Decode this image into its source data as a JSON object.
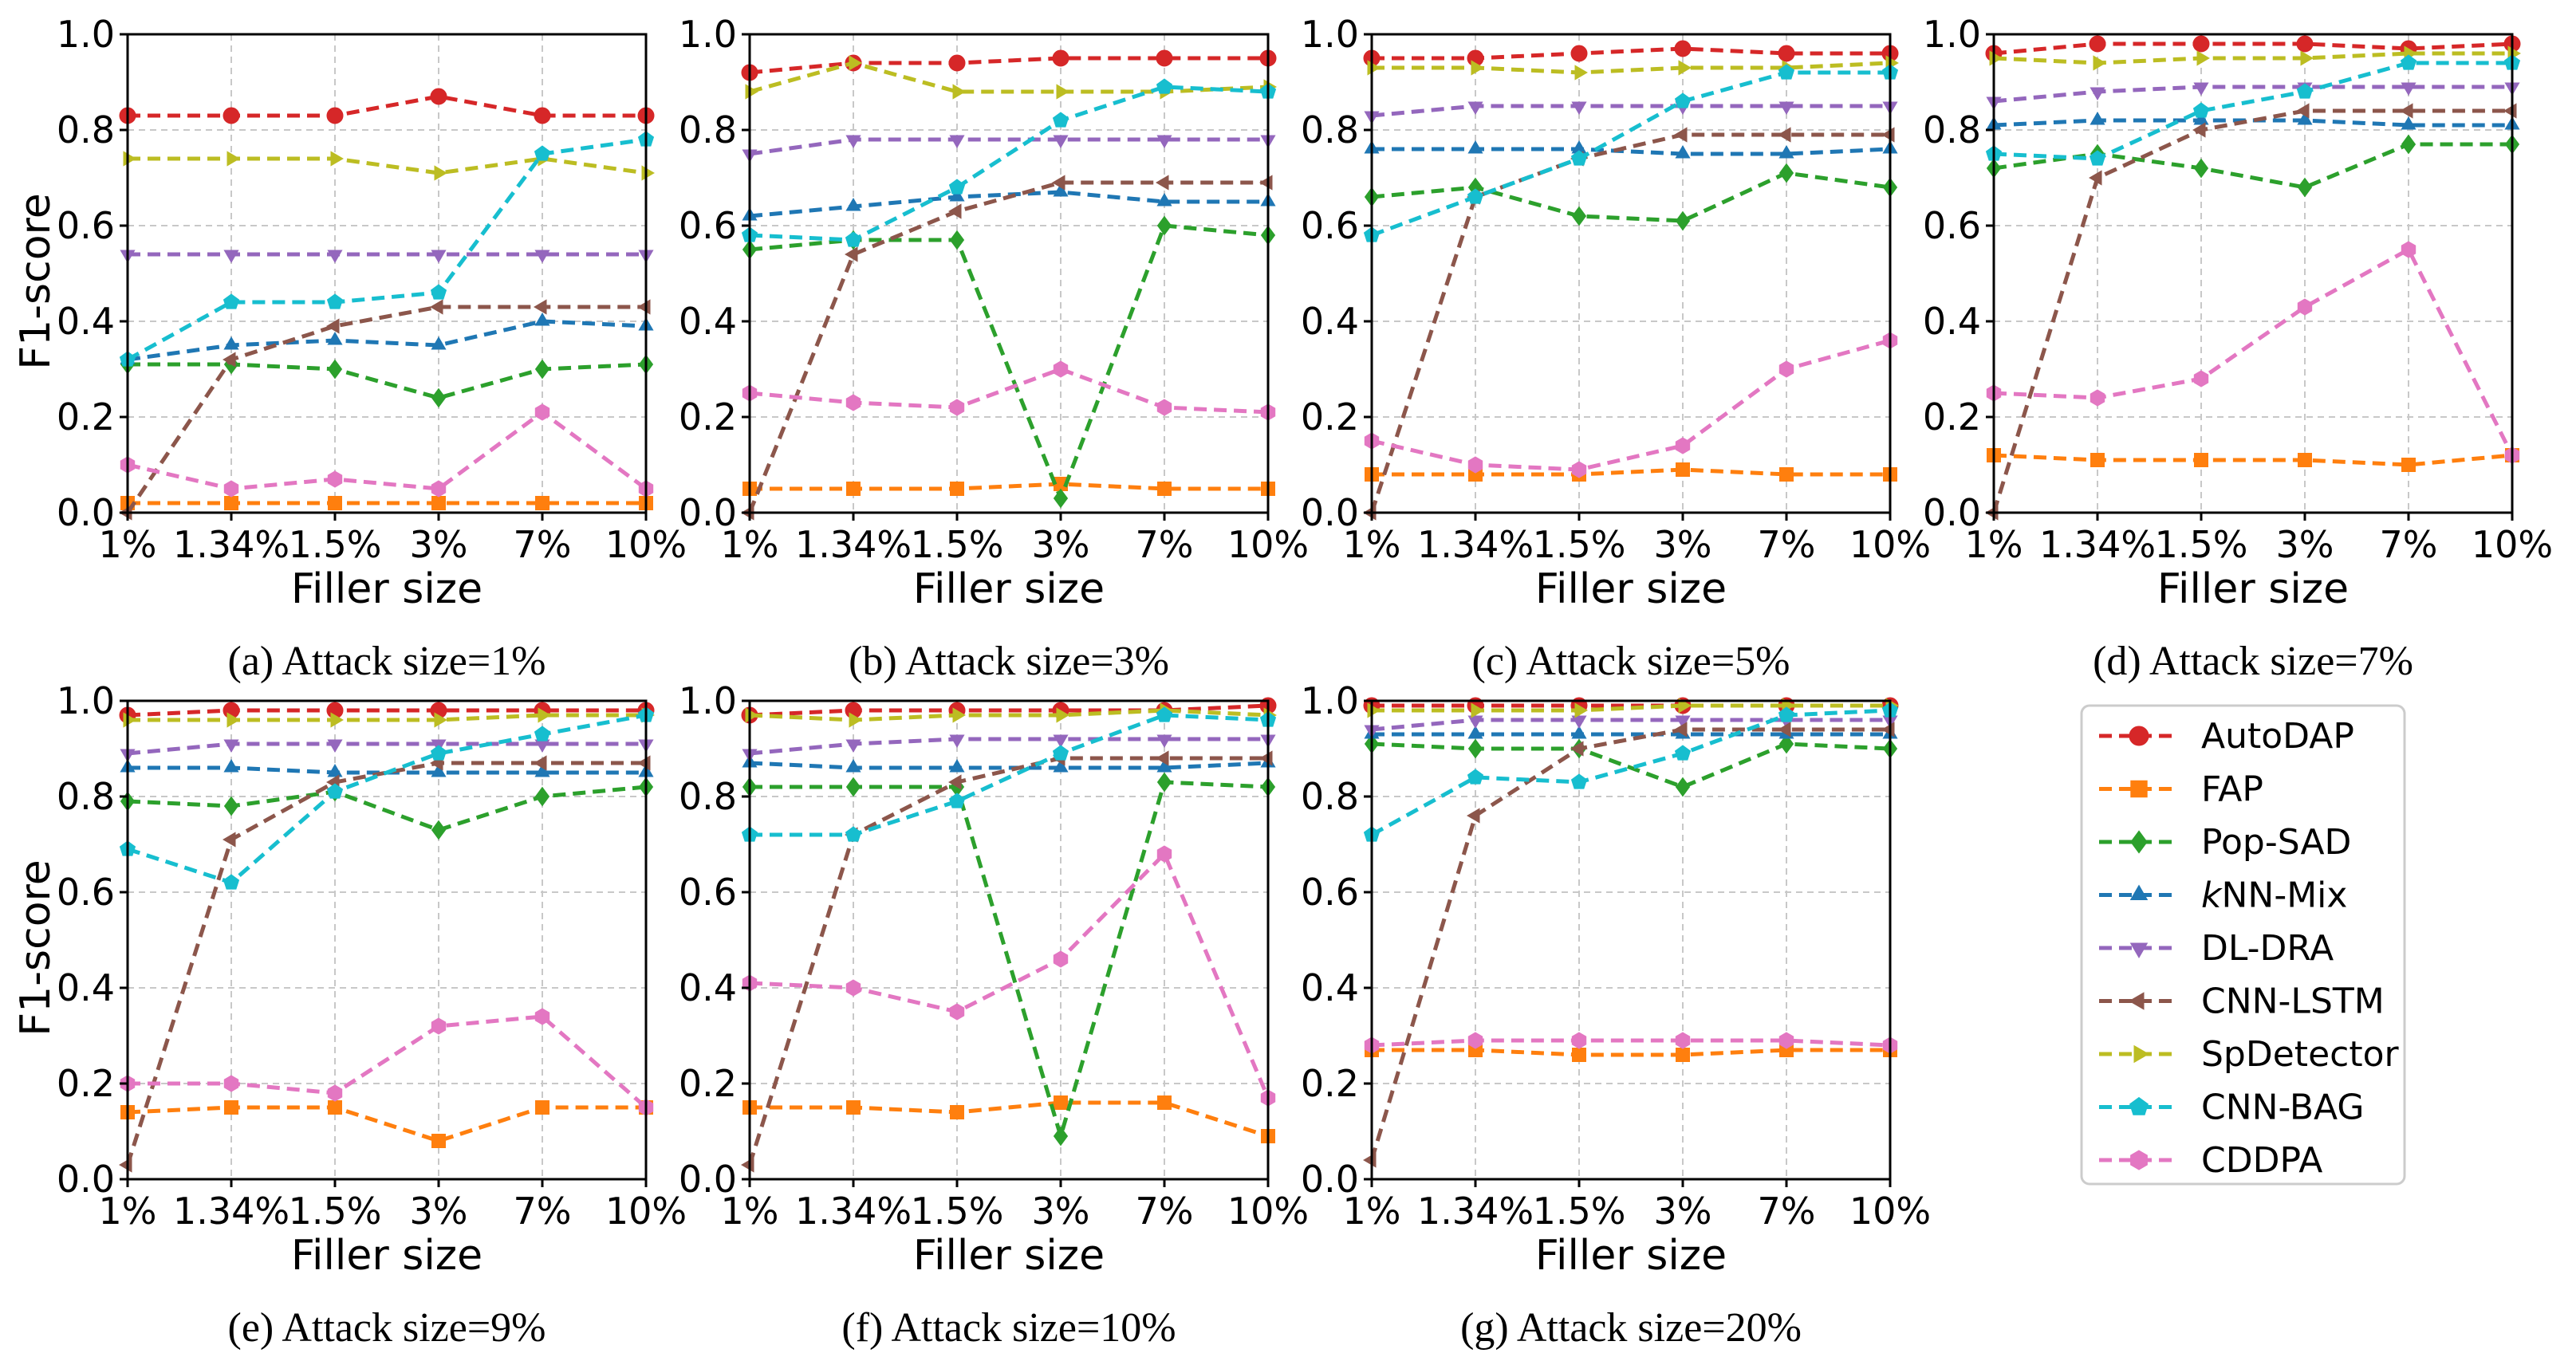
{
  "figure": {
    "x_axis_label": "Filler size",
    "y_axis_label": "F1-score",
    "legend": [
      {
        "name": "AutoDAP",
        "color": "#d62728",
        "marker": "circle"
      },
      {
        "name": "FAP",
        "color": "#ff7f0e",
        "marker": "square"
      },
      {
        "name": "Pop-SAD",
        "color": "#2ca02c",
        "marker": "diamond"
      },
      {
        "name": "kNN-Mix",
        "color": "#1f77b4",
        "marker": "triangle-up"
      },
      {
        "name": "DL-DRA",
        "color": "#9467bd",
        "marker": "triangle-down"
      },
      {
        "name": "CNN-LSTM",
        "color": "#8c564b",
        "marker": "triangle-left"
      },
      {
        "name": "SpDetector",
        "color": "#bcbd22",
        "marker": "triangle-right"
      },
      {
        "name": "CNN-BAG",
        "color": "#17becf",
        "marker": "pentagon"
      },
      {
        "name": "CDDPA",
        "color": "#e377c2",
        "marker": "hexagon"
      }
    ]
  },
  "chart_data": [
    {
      "type": "line",
      "caption": "(a) Attack size=1%",
      "categories": [
        "1%",
        "1.34%",
        "1.5%",
        "3%",
        "7%",
        "10%"
      ],
      "ylim": [
        0,
        1.0
      ],
      "yticks": [
        "0.0",
        "0.2",
        "0.4",
        "0.6",
        "0.8",
        "1.0"
      ],
      "grid": true,
      "series": [
        {
          "name": "AutoDAP",
          "values": [
            0.83,
            0.83,
            0.83,
            0.87,
            0.83,
            0.83
          ]
        },
        {
          "name": "FAP",
          "values": [
            0.02,
            0.02,
            0.02,
            0.02,
            0.02,
            0.02
          ]
        },
        {
          "name": "Pop-SAD",
          "values": [
            0.31,
            0.31,
            0.3,
            0.24,
            0.3,
            0.31
          ]
        },
        {
          "name": "kNN-Mix",
          "values": [
            0.32,
            0.35,
            0.36,
            0.35,
            0.4,
            0.39
          ]
        },
        {
          "name": "DL-DRA",
          "values": [
            0.54,
            0.54,
            0.54,
            0.54,
            0.54,
            0.54
          ]
        },
        {
          "name": "CNN-LSTM",
          "values": [
            0.0,
            0.32,
            0.39,
            0.43,
            0.43,
            0.43
          ]
        },
        {
          "name": "SpDetector",
          "values": [
            0.74,
            0.74,
            0.74,
            0.71,
            0.74,
            0.71
          ]
        },
        {
          "name": "CNN-BAG",
          "values": [
            0.32,
            0.44,
            0.44,
            0.46,
            0.75,
            0.78
          ]
        },
        {
          "name": "CDDPA",
          "values": [
            0.1,
            0.05,
            0.07,
            0.05,
            0.21,
            0.05
          ]
        }
      ]
    },
    {
      "type": "line",
      "caption": "(b) Attack size=3%",
      "categories": [
        "1%",
        "1.34%",
        "1.5%",
        "3%",
        "7%",
        "10%"
      ],
      "ylim": [
        0,
        1.0
      ],
      "yticks": [
        "0.0",
        "0.2",
        "0.4",
        "0.6",
        "0.8",
        "1.0"
      ],
      "grid": true,
      "series": [
        {
          "name": "AutoDAP",
          "values": [
            0.92,
            0.94,
            0.94,
            0.95,
            0.95,
            0.95
          ]
        },
        {
          "name": "FAP",
          "values": [
            0.05,
            0.05,
            0.05,
            0.06,
            0.05,
            0.05
          ]
        },
        {
          "name": "Pop-SAD",
          "values": [
            0.55,
            0.57,
            0.57,
            0.03,
            0.6,
            0.58
          ]
        },
        {
          "name": "kNN-Mix",
          "values": [
            0.62,
            0.64,
            0.66,
            0.67,
            0.65,
            0.65
          ]
        },
        {
          "name": "DL-DRA",
          "values": [
            0.75,
            0.78,
            0.78,
            0.78,
            0.78,
            0.78
          ]
        },
        {
          "name": "CNN-LSTM",
          "values": [
            0.0,
            0.54,
            0.63,
            0.69,
            0.69,
            0.69
          ]
        },
        {
          "name": "SpDetector",
          "values": [
            0.88,
            0.94,
            0.88,
            0.88,
            0.88,
            0.89
          ]
        },
        {
          "name": "CNN-BAG",
          "values": [
            0.58,
            0.57,
            0.68,
            0.82,
            0.89,
            0.88
          ]
        },
        {
          "name": "CDDPA",
          "values": [
            0.25,
            0.23,
            0.22,
            0.3,
            0.22,
            0.21
          ]
        }
      ]
    },
    {
      "type": "line",
      "caption": "(c) Attack size=5%",
      "categories": [
        "1%",
        "1.34%",
        "1.5%",
        "3%",
        "7%",
        "10%"
      ],
      "ylim": [
        0,
        1.0
      ],
      "yticks": [
        "0.0",
        "0.2",
        "0.4",
        "0.6",
        "0.8",
        "1.0"
      ],
      "grid": true,
      "series": [
        {
          "name": "AutoDAP",
          "values": [
            0.95,
            0.95,
            0.96,
            0.97,
            0.96,
            0.96
          ]
        },
        {
          "name": "FAP",
          "values": [
            0.08,
            0.08,
            0.08,
            0.09,
            0.08,
            0.08
          ]
        },
        {
          "name": "Pop-SAD",
          "values": [
            0.66,
            0.68,
            0.62,
            0.61,
            0.71,
            0.68
          ]
        },
        {
          "name": "kNN-Mix",
          "values": [
            0.76,
            0.76,
            0.76,
            0.75,
            0.75,
            0.76
          ]
        },
        {
          "name": "DL-DRA",
          "values": [
            0.83,
            0.85,
            0.85,
            0.85,
            0.85,
            0.85
          ]
        },
        {
          "name": "CNN-LSTM",
          "values": [
            0.0,
            0.66,
            0.74,
            0.79,
            0.79,
            0.79
          ]
        },
        {
          "name": "SpDetector",
          "values": [
            0.93,
            0.93,
            0.92,
            0.93,
            0.93,
            0.94
          ]
        },
        {
          "name": "CNN-BAG",
          "values": [
            0.58,
            0.66,
            0.74,
            0.86,
            0.92,
            0.92
          ]
        },
        {
          "name": "CDDPA",
          "values": [
            0.15,
            0.1,
            0.09,
            0.14,
            0.3,
            0.36
          ]
        }
      ]
    },
    {
      "type": "line",
      "caption": "(d) Attack size=7%",
      "categories": [
        "1%",
        "1.34%",
        "1.5%",
        "3%",
        "7%",
        "10%"
      ],
      "ylim": [
        0,
        1.0
      ],
      "yticks": [
        "0.0",
        "0.2",
        "0.4",
        "0.6",
        "0.8",
        "1.0"
      ],
      "grid": true,
      "series": [
        {
          "name": "AutoDAP",
          "values": [
            0.96,
            0.98,
            0.98,
            0.98,
            0.97,
            0.98
          ]
        },
        {
          "name": "FAP",
          "values": [
            0.12,
            0.11,
            0.11,
            0.11,
            0.1,
            0.12
          ]
        },
        {
          "name": "Pop-SAD",
          "values": [
            0.72,
            0.75,
            0.72,
            0.68,
            0.77,
            0.77
          ]
        },
        {
          "name": "kNN-Mix",
          "values": [
            0.81,
            0.82,
            0.82,
            0.82,
            0.81,
            0.81
          ]
        },
        {
          "name": "DL-DRA",
          "values": [
            0.86,
            0.88,
            0.89,
            0.89,
            0.89,
            0.89
          ]
        },
        {
          "name": "CNN-LSTM",
          "values": [
            0.0,
            0.7,
            0.8,
            0.84,
            0.84,
            0.84
          ]
        },
        {
          "name": "SpDetector",
          "values": [
            0.95,
            0.94,
            0.95,
            0.95,
            0.96,
            0.96
          ]
        },
        {
          "name": "CNN-BAG",
          "values": [
            0.75,
            0.74,
            0.84,
            0.88,
            0.94,
            0.94
          ]
        },
        {
          "name": "CDDPA",
          "values": [
            0.25,
            0.24,
            0.28,
            0.43,
            0.55,
            0.12
          ]
        }
      ]
    },
    {
      "type": "line",
      "caption": "(e) Attack size=9%",
      "categories": [
        "1%",
        "1.34%",
        "1.5%",
        "3%",
        "7%",
        "10%"
      ],
      "ylim": [
        0,
        1.0
      ],
      "yticks": [
        "0.0",
        "0.2",
        "0.4",
        "0.6",
        "0.8",
        "1.0"
      ],
      "grid": true,
      "series": [
        {
          "name": "AutoDAP",
          "values": [
            0.97,
            0.98,
            0.98,
            0.98,
            0.98,
            0.98
          ]
        },
        {
          "name": "FAP",
          "values": [
            0.14,
            0.15,
            0.15,
            0.08,
            0.15,
            0.15
          ]
        },
        {
          "name": "Pop-SAD",
          "values": [
            0.79,
            0.78,
            0.81,
            0.73,
            0.8,
            0.82
          ]
        },
        {
          "name": "kNN-Mix",
          "values": [
            0.86,
            0.86,
            0.85,
            0.85,
            0.85,
            0.85
          ]
        },
        {
          "name": "DL-DRA",
          "values": [
            0.89,
            0.91,
            0.91,
            0.91,
            0.91,
            0.91
          ]
        },
        {
          "name": "CNN-LSTM",
          "values": [
            0.03,
            0.71,
            0.83,
            0.87,
            0.87,
            0.87
          ]
        },
        {
          "name": "SpDetector",
          "values": [
            0.96,
            0.96,
            0.96,
            0.96,
            0.97,
            0.97
          ]
        },
        {
          "name": "CNN-BAG",
          "values": [
            0.69,
            0.62,
            0.81,
            0.89,
            0.93,
            0.97
          ]
        },
        {
          "name": "CDDPA",
          "values": [
            0.2,
            0.2,
            0.18,
            0.32,
            0.34,
            0.15
          ]
        }
      ]
    },
    {
      "type": "line",
      "caption": "(f) Attack size=10%",
      "categories": [
        "1%",
        "1.34%",
        "1.5%",
        "3%",
        "7%",
        "10%"
      ],
      "ylim": [
        0,
        1.0
      ],
      "yticks": [
        "0.0",
        "0.2",
        "0.4",
        "0.6",
        "0.8",
        "1.0"
      ],
      "grid": true,
      "series": [
        {
          "name": "AutoDAP",
          "values": [
            0.97,
            0.98,
            0.98,
            0.98,
            0.98,
            0.99
          ]
        },
        {
          "name": "FAP",
          "values": [
            0.15,
            0.15,
            0.14,
            0.16,
            0.16,
            0.09
          ]
        },
        {
          "name": "Pop-SAD",
          "values": [
            0.82,
            0.82,
            0.82,
            0.09,
            0.83,
            0.82
          ]
        },
        {
          "name": "kNN-Mix",
          "values": [
            0.87,
            0.86,
            0.86,
            0.86,
            0.86,
            0.87
          ]
        },
        {
          "name": "DL-DRA",
          "values": [
            0.89,
            0.91,
            0.92,
            0.92,
            0.92,
            0.92
          ]
        },
        {
          "name": "CNN-LSTM",
          "values": [
            0.03,
            0.72,
            0.83,
            0.88,
            0.88,
            0.88
          ]
        },
        {
          "name": "SpDetector",
          "values": [
            0.97,
            0.96,
            0.97,
            0.97,
            0.98,
            0.97
          ]
        },
        {
          "name": "CNN-BAG",
          "values": [
            0.72,
            0.72,
            0.79,
            0.89,
            0.97,
            0.96
          ]
        },
        {
          "name": "CDDPA",
          "values": [
            0.41,
            0.4,
            0.35,
            0.46,
            0.68,
            0.17
          ]
        }
      ]
    },
    {
      "type": "line",
      "caption": "(g) Attack size=20%",
      "categories": [
        "1%",
        "1.34%",
        "1.5%",
        "3%",
        "7%",
        "10%"
      ],
      "ylim": [
        0,
        1.0
      ],
      "yticks": [
        "0.0",
        "0.2",
        "0.4",
        "0.6",
        "0.8",
        "1.0"
      ],
      "grid": true,
      "series": [
        {
          "name": "AutoDAP",
          "values": [
            0.99,
            0.99,
            0.99,
            0.99,
            0.99,
            0.99
          ]
        },
        {
          "name": "FAP",
          "values": [
            0.27,
            0.27,
            0.26,
            0.26,
            0.27,
            0.27
          ]
        },
        {
          "name": "Pop-SAD",
          "values": [
            0.91,
            0.9,
            0.9,
            0.82,
            0.91,
            0.9
          ]
        },
        {
          "name": "kNN-Mix",
          "values": [
            0.93,
            0.93,
            0.93,
            0.93,
            0.93,
            0.93
          ]
        },
        {
          "name": "DL-DRA",
          "values": [
            0.94,
            0.96,
            0.96,
            0.96,
            0.96,
            0.96
          ]
        },
        {
          "name": "CNN-LSTM",
          "values": [
            0.04,
            0.76,
            0.9,
            0.94,
            0.94,
            0.94
          ]
        },
        {
          "name": "SpDetector",
          "values": [
            0.98,
            0.98,
            0.98,
            0.99,
            0.99,
            0.99
          ]
        },
        {
          "name": "CNN-BAG",
          "values": [
            0.72,
            0.84,
            0.83,
            0.89,
            0.97,
            0.98
          ]
        },
        {
          "name": "CDDPA",
          "values": [
            0.28,
            0.29,
            0.29,
            0.29,
            0.29,
            0.28
          ]
        }
      ]
    }
  ]
}
